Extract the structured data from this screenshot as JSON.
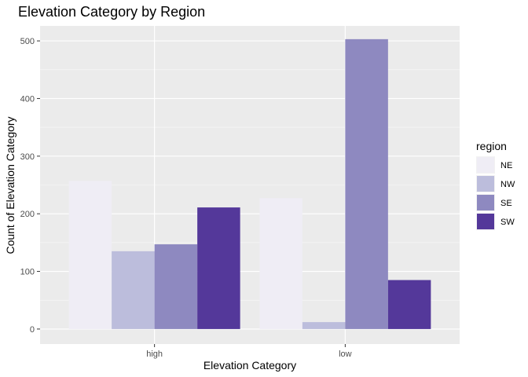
{
  "chart_data": {
    "type": "bar",
    "title": "Elevation Category by Region",
    "xlabel": "Elevation Category",
    "ylabel": "Count of Elevation Category",
    "categories": [
      "high",
      "low"
    ],
    "series": [
      {
        "name": "NE",
        "color": "#efedf5",
        "values": [
          257,
          227
        ]
      },
      {
        "name": "NW",
        "color": "#bcbddc",
        "values": [
          135,
          12
        ]
      },
      {
        "name": "SE",
        "color": "#8e89c0",
        "values": [
          147,
          503
        ]
      },
      {
        "name": "SW",
        "color": "#54389a",
        "values": [
          211,
          85
        ]
      }
    ],
    "yticks": [
      0,
      100,
      200,
      300,
      400,
      500
    ],
    "ylim": [
      -26,
      526
    ],
    "legend": {
      "title": "region",
      "position": "right"
    },
    "grid": true,
    "panel_background": "#ebebeb"
  }
}
